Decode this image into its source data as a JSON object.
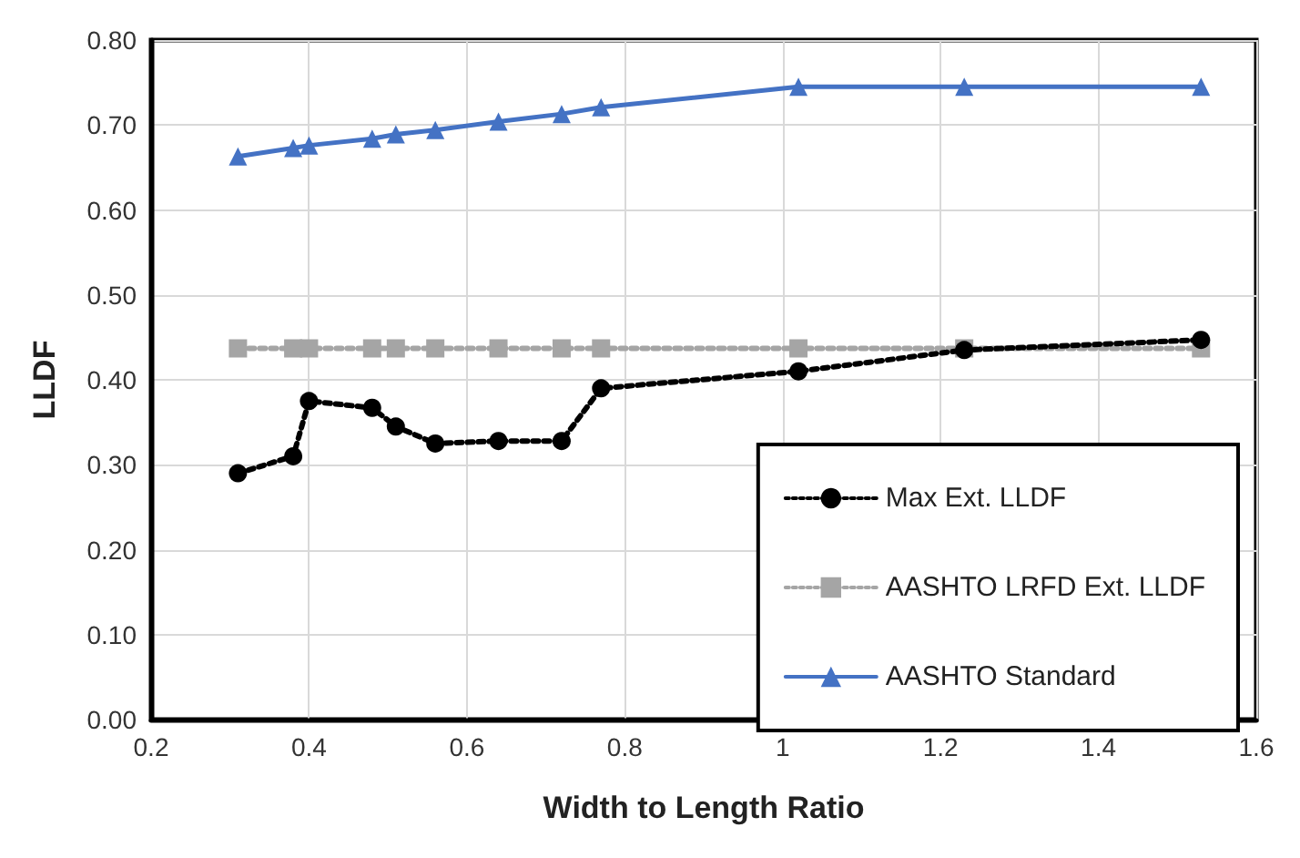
{
  "chart_data": {
    "type": "line",
    "xlabel": "Width to Length Ratio",
    "ylabel": "LLDF",
    "x": [
      0.31,
      0.38,
      0.4,
      0.48,
      0.51,
      0.56,
      0.64,
      0.72,
      0.77,
      1.02,
      1.23,
      1.53
    ],
    "series": [
      {
        "name": "Max Ext. LLDF",
        "color": "#000000",
        "marker": "circle",
        "line_style": "dotted",
        "values": [
          0.29,
          0.31,
          0.375,
          0.367,
          0.345,
          0.325,
          0.328,
          0.328,
          0.39,
          0.41,
          0.435,
          0.447
        ]
      },
      {
        "name": "AASHTO LRFD Ext. LLDF",
        "color": "#a5a5a5",
        "marker": "square",
        "line_style": "dotted",
        "values": [
          0.437,
          0.437,
          0.437,
          0.437,
          0.437,
          0.437,
          0.437,
          0.437,
          0.437,
          0.437,
          0.437,
          0.437
        ]
      },
      {
        "name": "AASHTO Standard",
        "color": "#4472c4",
        "marker": "triangle",
        "line_style": "solid",
        "values": [
          0.663,
          0.673,
          0.676,
          0.684,
          0.689,
          0.694,
          0.704,
          0.713,
          0.721,
          0.745,
          0.745,
          0.745
        ]
      }
    ],
    "xlim": [
      0.2,
      1.6
    ],
    "xticks": [
      0.2,
      0.4,
      0.6,
      0.8,
      1,
      1.2,
      1.4,
      1.6
    ],
    "ylim": [
      0,
      0.8
    ],
    "yticks": [
      {
        "value": 0,
        "label": "0.00"
      },
      {
        "value": 0.1,
        "label": "0.10"
      },
      {
        "value": 0.2,
        "label": "0.20"
      },
      {
        "value": 0.3,
        "label": "0.30"
      },
      {
        "value": 0.4,
        "label": "0.40"
      },
      {
        "value": 0.5,
        "label": "0.50"
      },
      {
        "value": 0.6,
        "label": "0.60"
      },
      {
        "value": 0.7,
        "label": "0.70"
      },
      {
        "value": 0.8,
        "label": "0.80"
      }
    ],
    "grid": true,
    "legend": "bottom right"
  }
}
